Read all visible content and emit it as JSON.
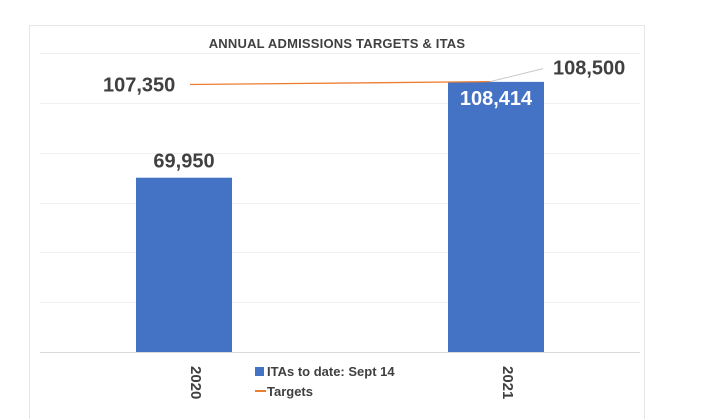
{
  "chart_data": {
    "type": "bar",
    "title": "ANNUAL ADMISSIONS TARGETS & ITAS",
    "categories": [
      "2020",
      "2021"
    ],
    "series": [
      {
        "name": "ITAs to date: Sept 14",
        "kind": "bar",
        "values": [
          69950,
          108414
        ],
        "labels": [
          "69,950",
          "108,414"
        ],
        "color": "#4472c4"
      },
      {
        "name": "Targets",
        "kind": "line",
        "values": [
          107350,
          108500
        ],
        "labels": [
          "107,350",
          "108,500"
        ],
        "color": "#ed7d31"
      }
    ],
    "ylim": [
      0,
      120000
    ],
    "grid": true,
    "legend_position": "bottom-center"
  }
}
